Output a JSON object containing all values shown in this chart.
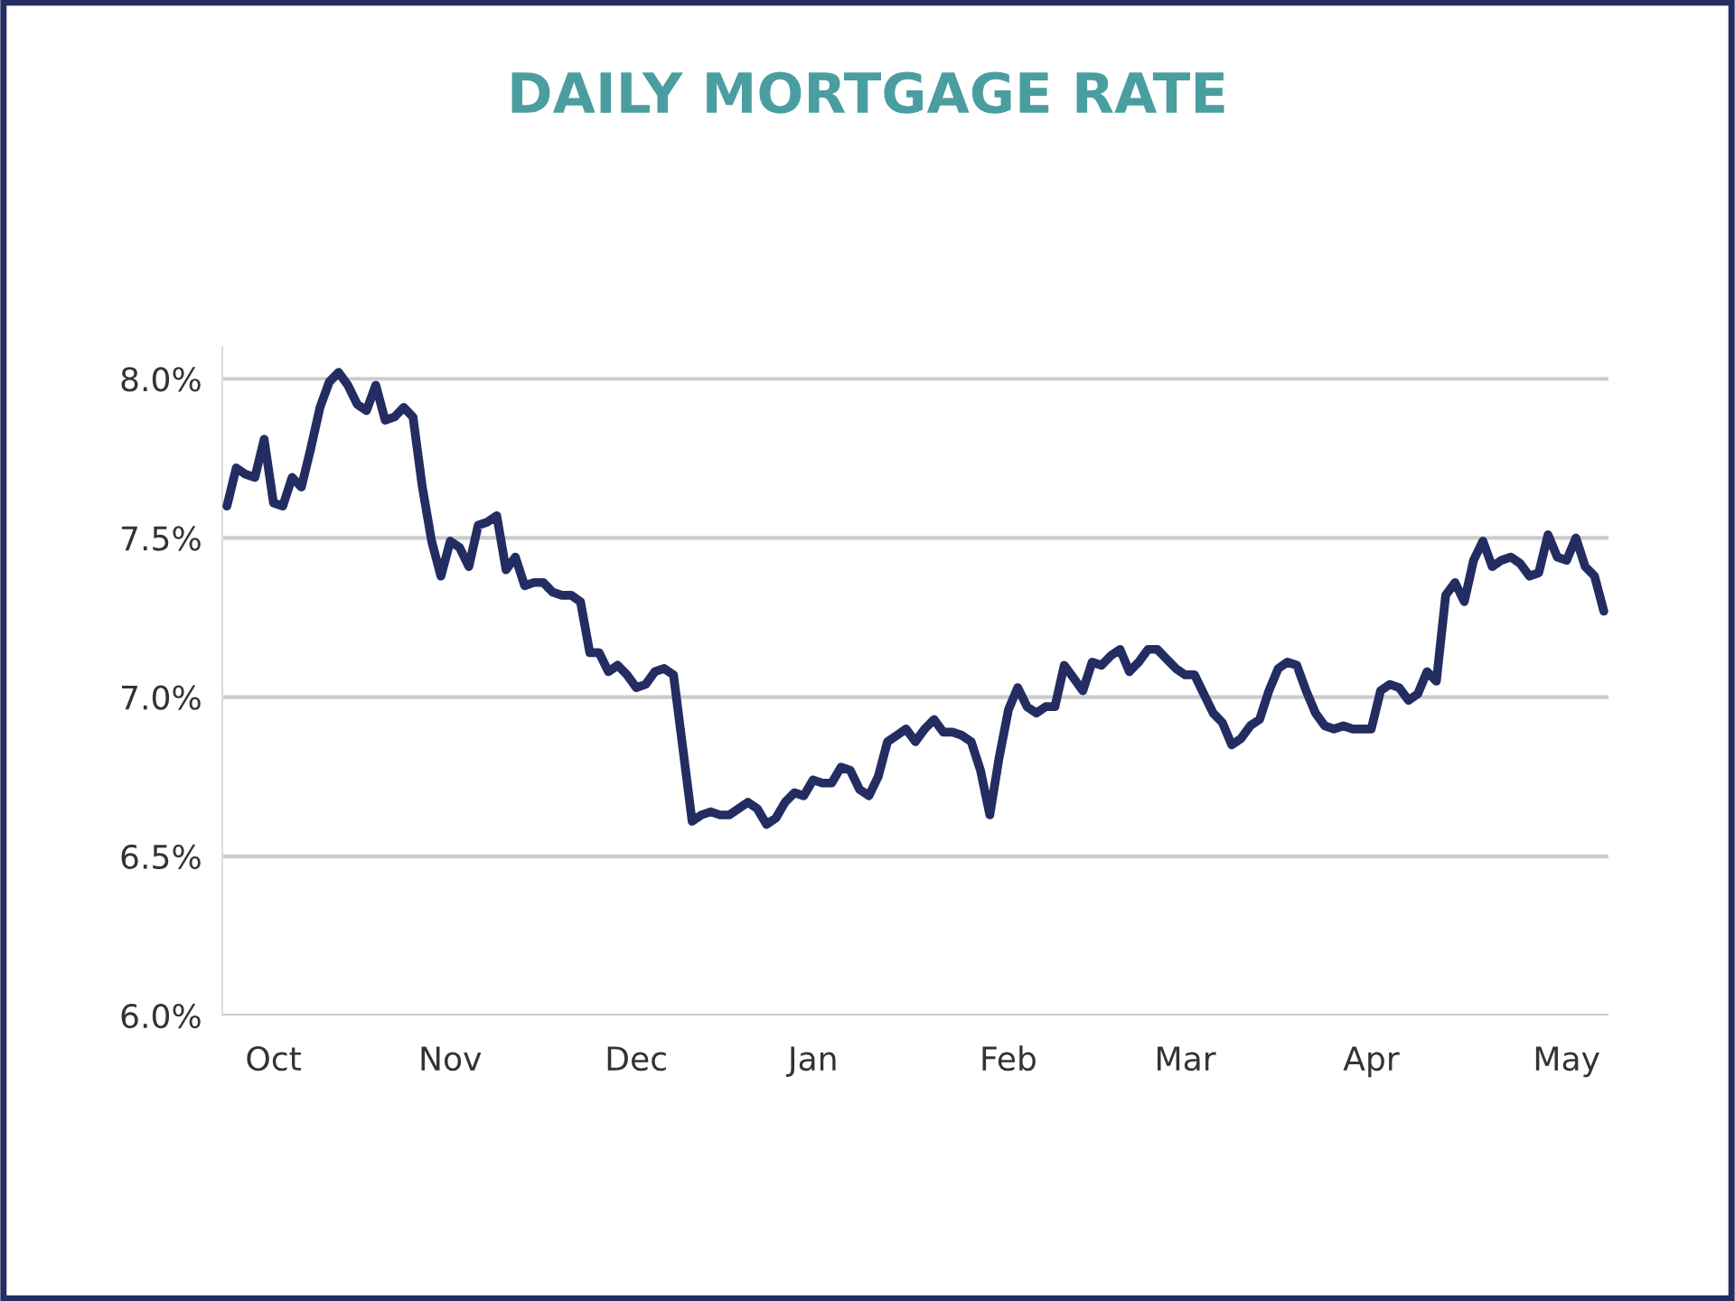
{
  "chart_data": {
    "type": "line",
    "title": "DAILY MORTGAGE RATE",
    "categories": [
      null,
      null,
      null,
      null,
      null,
      "Oct",
      null,
      null,
      null,
      null,
      null,
      null,
      null,
      null,
      null,
      null,
      null,
      null,
      null,
      null,
      null,
      null,
      null,
      null,
      "Nov",
      null,
      null,
      null,
      null,
      null,
      null,
      null,
      null,
      null,
      null,
      null,
      null,
      null,
      null,
      null,
      null,
      null,
      null,
      null,
      "Dec",
      null,
      null,
      null,
      null,
      null,
      null,
      null,
      null,
      null,
      null,
      null,
      null,
      null,
      null,
      null,
      null,
      null,
      null,
      "Jan",
      null,
      null,
      null,
      null,
      null,
      null,
      null,
      null,
      null,
      null,
      null,
      null,
      null,
      null,
      null,
      null,
      null,
      null,
      null,
      null,
      "Feb",
      null,
      null,
      null,
      null,
      null,
      null,
      null,
      null,
      null,
      null,
      null,
      null,
      null,
      null,
      null,
      null,
      null,
      null,
      "Mar",
      null,
      null,
      null,
      null,
      null,
      null,
      null,
      null,
      null,
      null,
      null,
      null,
      null,
      null,
      null,
      null,
      null,
      null,
      null,
      "Apr",
      null,
      null,
      null,
      null,
      null,
      null,
      null,
      null,
      null,
      null,
      null,
      null,
      null,
      null,
      null,
      null,
      null,
      null,
      null,
      null,
      "May",
      null,
      null,
      null,
      null
    ],
    "series": [
      {
        "color": "#232d62",
        "values": [
          7.6,
          7.72,
          7.7,
          7.69,
          7.81,
          7.61,
          7.6,
          7.69,
          7.66,
          7.78,
          7.91,
          7.99,
          8.02,
          7.98,
          7.92,
          7.9,
          7.98,
          7.87,
          7.88,
          7.91,
          7.88,
          7.66,
          7.49,
          7.38,
          7.49,
          7.47,
          7.41,
          7.54,
          7.55,
          7.57,
          7.4,
          7.44,
          7.35,
          7.36,
          7.36,
          7.33,
          7.32,
          7.32,
          7.3,
          7.14,
          7.14,
          7.08,
          7.1,
          7.07,
          7.03,
          7.04,
          7.08,
          7.09,
          7.07,
          6.84,
          6.61,
          6.63,
          6.64,
          6.63,
          6.63,
          6.65,
          6.67,
          6.65,
          6.6,
          6.62,
          6.67,
          6.7,
          6.69,
          6.74,
          6.73,
          6.73,
          6.78,
          6.77,
          6.71,
          6.69,
          6.75,
          6.86,
          6.88,
          6.9,
          6.86,
          6.9,
          6.93,
          6.89,
          6.89,
          6.88,
          6.86,
          6.77,
          6.63,
          6.81,
          6.96,
          7.03,
          6.97,
          6.95,
          6.97,
          6.97,
          7.1,
          7.06,
          7.02,
          7.11,
          7.1,
          7.13,
          7.15,
          7.08,
          7.11,
          7.15,
          7.15,
          7.12,
          7.09,
          7.07,
          7.07,
          7.01,
          6.95,
          6.92,
          6.85,
          6.87,
          6.91,
          6.93,
          7.02,
          7.09,
          7.11,
          7.1,
          7.02,
          6.95,
          6.91,
          6.9,
          6.91,
          6.9,
          6.9,
          6.9,
          7.02,
          7.04,
          7.03,
          6.99,
          7.01,
          7.08,
          7.05,
          7.32,
          7.36,
          7.3,
          7.43,
          7.49,
          7.41,
          7.43,
          7.44,
          7.42,
          7.38,
          7.39,
          7.51,
          7.44,
          7.43,
          7.5,
          7.41,
          7.38,
          7.27
        ]
      }
    ],
    "ylim": [
      6.0,
      8.1
    ],
    "yticks": [
      {
        "value": 6.0,
        "label": "6.0%"
      },
      {
        "value": 6.5,
        "label": "6.5%"
      },
      {
        "value": 7.0,
        "label": "7.0%"
      },
      {
        "value": 7.5,
        "label": "7.5%"
      },
      {
        "value": 8.0,
        "label": "8.0%"
      }
    ],
    "grid": "y",
    "marker": "none",
    "line_style": "solid"
  }
}
